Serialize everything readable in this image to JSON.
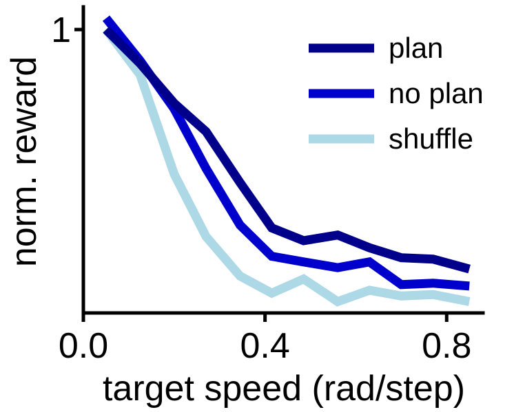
{
  "chart_data": {
    "type": "line",
    "xlabel": "target speed (rad/step)",
    "ylabel": "norm. reward",
    "xlim": [
      0.0,
      0.88
    ],
    "ylim": [
      0.0,
      1.08
    ],
    "x_ticks": [
      {
        "value": 0.0,
        "label": "0.0"
      },
      {
        "value": 0.4,
        "label": "0.4"
      },
      {
        "value": 0.8,
        "label": "0.8"
      }
    ],
    "y_ticks": [
      {
        "value": 1.0,
        "label": "1"
      }
    ],
    "x": [
      0.05,
      0.125,
      0.2,
      0.27,
      0.345,
      0.415,
      0.485,
      0.56,
      0.63,
      0.7,
      0.77,
      0.85
    ],
    "series": [
      {
        "name": "plan",
        "color": "#00008b",
        "values": [
          1.0,
          0.88,
          0.74,
          0.64,
          0.46,
          0.3,
          0.255,
          0.275,
          0.23,
          0.195,
          0.19,
          0.155
        ]
      },
      {
        "name": "no plan",
        "color": "#0000cd",
        "values": [
          1.04,
          0.89,
          0.72,
          0.51,
          0.31,
          0.2,
          0.18,
          0.16,
          0.18,
          0.1,
          0.105,
          0.095
        ]
      },
      {
        "name": "shuffle",
        "color": "#add8e6",
        "values": [
          1.0,
          0.84,
          0.49,
          0.27,
          0.13,
          0.07,
          0.12,
          0.04,
          0.08,
          0.06,
          0.065,
          0.04
        ]
      }
    ],
    "grid": false,
    "legend_position": "top-right"
  }
}
